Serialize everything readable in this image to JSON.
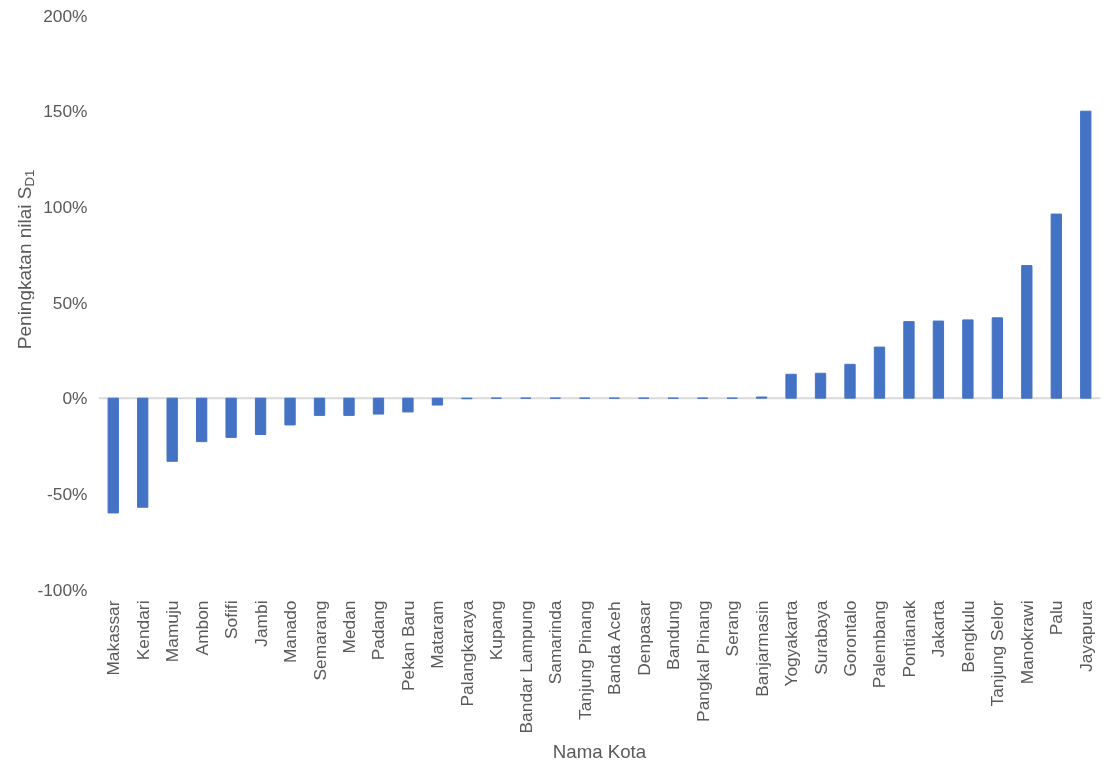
{
  "chart_data": {
    "type": "bar",
    "xlabel": "Nama Kota",
    "ylabel": "Peningkatan nilai S$_{D1}$",
    "categories": [
      "Makassar",
      "Kendari",
      "Mamuju",
      "Ambon",
      "Sofifi",
      "Jambi",
      "Manado",
      "Semarang",
      "Medan",
      "Padang",
      "Pekan Baru",
      "Mataram",
      "Palangkaraya",
      "Kupang",
      "Bandar Lampung",
      "Samarinda",
      "Tanjung Pinang",
      "Banda Aceh",
      "Denpasar",
      "Bandung",
      "Pangkal Pinang",
      "Serang",
      "Banjarmasin",
      "Yogyakarta",
      "Surabaya",
      "Gorontalo",
      "Palembang",
      "Pontianak",
      "Jakarta",
      "Bengkulu",
      "Tanjung Selor",
      "Manokrawi",
      "Palu",
      "Jayapura"
    ],
    "values": [
      -60,
      -57,
      -33,
      -22.7,
      -20.5,
      -19,
      -14,
      -9,
      -9,
      -8.3,
      -7.2,
      -3.6,
      -0.3,
      0,
      0,
      0,
      0,
      0,
      0,
      0,
      0,
      0,
      0.6,
      12.5,
      13,
      17.7,
      26.7,
      40,
      40.3,
      40.9,
      42,
      69.3,
      96.2,
      150
    ],
    "color": "#4472c4",
    "ylim": [
      -100,
      200
    ],
    "yticks": [
      {
        "value": -100,
        "label": "-100%"
      },
      {
        "value": -50,
        "label": "-50%"
      },
      {
        "value": 0,
        "label": "0%"
      },
      {
        "value": 50,
        "label": "50%"
      },
      {
        "value": 100,
        "label": "100%"
      },
      {
        "value": 150,
        "label": "150%"
      },
      {
        "value": 200,
        "label": "200%"
      }
    ],
    "grid": false,
    "ref_lines": [
      {
        "axis": "y",
        "value": 0,
        "color": "#d9d9d9"
      }
    ]
  }
}
